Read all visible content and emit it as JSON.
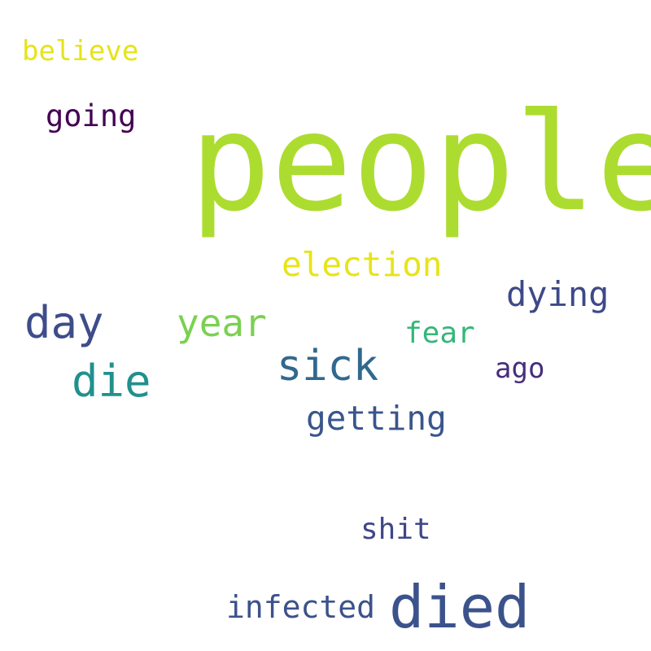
{
  "words": [
    {
      "text": "people",
      "color": "#addc30"
    },
    {
      "text": "died",
      "color": "#3b528b"
    },
    {
      "text": "day",
      "color": "#3e4c8a"
    },
    {
      "text": "die",
      "color": "#21908d"
    },
    {
      "text": "sick",
      "color": "#31688e"
    },
    {
      "text": "year",
      "color": "#7ad151"
    },
    {
      "text": "election",
      "color": "#e7e419"
    },
    {
      "text": "dying",
      "color": "#3e4989"
    },
    {
      "text": "getting",
      "color": "#39568c"
    },
    {
      "text": "infected",
      "color": "#3b528b"
    },
    {
      "text": "going",
      "color": "#440154"
    },
    {
      "text": "believe",
      "color": "#e5e419"
    },
    {
      "text": "fear",
      "color": "#35b779"
    },
    {
      "text": "ago",
      "color": "#472d7b"
    },
    {
      "text": "shit",
      "color": "#3f4788"
    }
  ]
}
